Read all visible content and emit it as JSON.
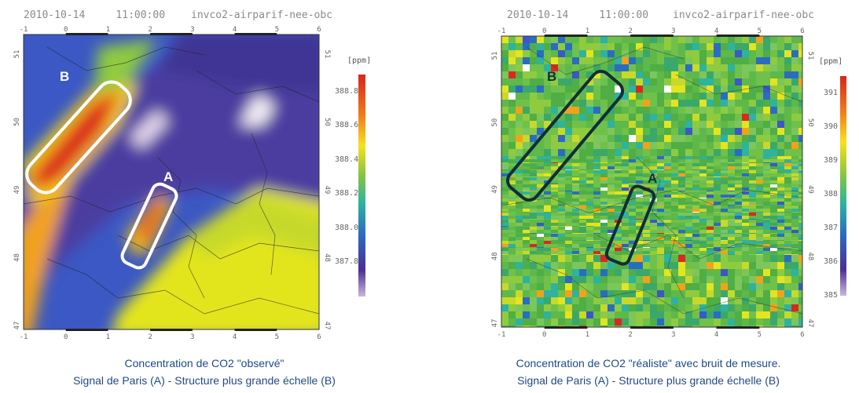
{
  "left": {
    "date": "2010-10-14",
    "time": "11:00:00",
    "run": "invco2-airparif-nee-obc",
    "unit": "[ppm]",
    "colorbar_ticks": [
      "388.8",
      "388.6",
      "388.4",
      "388.2",
      "388.0",
      "387.8"
    ],
    "colorbar_range": [
      387.6,
      388.9
    ],
    "zone_a": "A",
    "zone_b": "B",
    "zone_outline_color": "#ffffff",
    "caption_line1": "Concentration de CO2 \"observé\"",
    "caption_line2": "Signal de Paris (A) - Structure plus grande échelle (B)"
  },
  "right": {
    "date": "2010-10-14",
    "time": "11:00:00",
    "run": "invco2-airparif-nee-obc",
    "unit": "[ppm]",
    "colorbar_ticks": [
      "391",
      "390",
      "389",
      "388",
      "387",
      "386",
      "385"
    ],
    "colorbar_range": [
      385,
      391.5
    ],
    "zone_a": "A",
    "zone_b": "B",
    "zone_outline_color": "#0f2e3a",
    "caption_line1": "Concentration de CO2 \"réaliste\" avec bruit de mesure.",
    "caption_line2": "Signal de Paris (A) - Structure plus grande échelle (B)"
  },
  "axes": {
    "lon_ticks": [
      "-1",
      "0",
      "1",
      "2",
      "3",
      "4",
      "5",
      "6"
    ],
    "lat_ticks": [
      "51",
      "50",
      "49",
      "48",
      "47"
    ]
  },
  "colors": {
    "caption": "#1e4a86",
    "frame": "#333333"
  }
}
